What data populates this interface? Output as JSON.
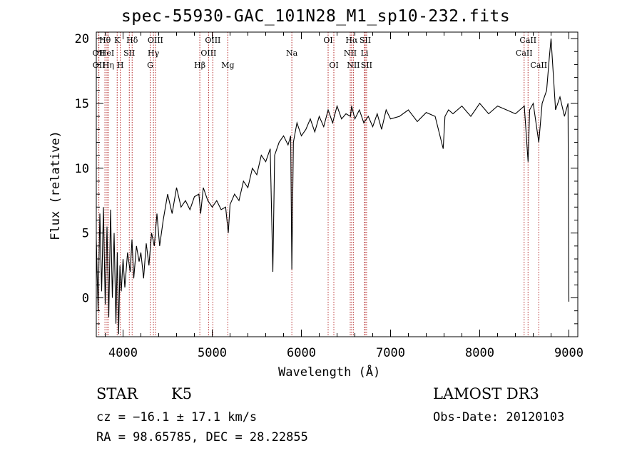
{
  "chart_data": {
    "type": "line",
    "title": "spec-55930-GAC_101N28_M1_sp10-232.fits",
    "xlabel": "Wavelength (Å)",
    "ylabel": "Flux (relative)",
    "xlim": [
      3700,
      9100
    ],
    "ylim": [
      -3,
      20.5
    ],
    "xticks": [
      4000,
      5000,
      6000,
      7000,
      8000,
      9000
    ],
    "yticks": [
      0,
      5,
      10,
      15,
      20
    ],
    "series": [
      {
        "name": "flux",
        "x": [
          3700,
          3720,
          3740,
          3760,
          3780,
          3800,
          3820,
          3840,
          3860,
          3880,
          3900,
          3920,
          3935,
          3950,
          3965,
          3980,
          4000,
          4020,
          4050,
          4080,
          4100,
          4120,
          4150,
          4180,
          4200,
          4230,
          4260,
          4290,
          4320,
          4350,
          4380,
          4410,
          4450,
          4500,
          4550,
          4600,
          4650,
          4700,
          4750,
          4800,
          4850,
          4870,
          4900,
          4950,
          5000,
          5050,
          5100,
          5150,
          5180,
          5200,
          5250,
          5300,
          5350,
          5400,
          5450,
          5500,
          5550,
          5600,
          5650,
          5680,
          5700,
          5750,
          5800,
          5850,
          5880,
          5893,
          5910,
          5950,
          6000,
          6050,
          6100,
          6150,
          6200,
          6250,
          6300,
          6350,
          6400,
          6450,
          6500,
          6550,
          6563,
          6600,
          6650,
          6700,
          6750,
          6800,
          6850,
          6900,
          6950,
          7000,
          7100,
          7200,
          7300,
          7400,
          7500,
          7590,
          7610,
          7650,
          7700,
          7800,
          7900,
          8000,
          8100,
          8200,
          8300,
          8400,
          8500,
          8542,
          8560,
          8600,
          8662,
          8700,
          8750,
          8780,
          8800,
          8850,
          8900,
          8950,
          8990,
          9000
        ],
        "y": [
          4.5,
          -1.0,
          6.5,
          0.5,
          7.0,
          -0.5,
          5.5,
          -1.5,
          6.8,
          0.0,
          5.0,
          -2.0,
          3.5,
          -2.8,
          2.5,
          0.5,
          3.0,
          0.8,
          3.5,
          2.0,
          4.5,
          1.5,
          4.0,
          2.8,
          3.5,
          1.5,
          4.2,
          2.5,
          5.0,
          4.0,
          6.5,
          4.0,
          6.0,
          8.0,
          6.5,
          8.5,
          7.0,
          7.5,
          6.8,
          7.8,
          8.0,
          6.5,
          8.5,
          7.5,
          7.0,
          7.5,
          6.8,
          7.0,
          5.0,
          7.2,
          8.0,
          7.5,
          9.0,
          8.5,
          10.0,
          9.5,
          11.0,
          10.5,
          11.5,
          2.0,
          11.0,
          12.0,
          12.5,
          11.8,
          12.5,
          2.2,
          12.0,
          13.5,
          12.5,
          13.0,
          13.8,
          12.8,
          14.0,
          13.2,
          14.5,
          13.5,
          14.8,
          13.8,
          14.2,
          14.0,
          14.8,
          13.8,
          14.5,
          13.5,
          14.0,
          13.2,
          14.2,
          13.0,
          14.5,
          13.8,
          14.0,
          14.5,
          13.6,
          14.3,
          14.0,
          11.5,
          14.0,
          14.5,
          14.2,
          14.8,
          14.0,
          15.0,
          14.2,
          14.8,
          14.5,
          14.2,
          14.8,
          10.5,
          14.5,
          15.0,
          12.0,
          15.0,
          16.0,
          18.5,
          20.0,
          14.5,
          15.5,
          14.0,
          15.0,
          -0.3
        ]
      }
    ],
    "lines": [
      {
        "label": "Hθ",
        "x": 3797,
        "row": 0
      },
      {
        "label": "OII",
        "x": 3727,
        "row": 1
      },
      {
        "label": "OII",
        "x": 3729,
        "row": 2
      },
      {
        "label": "HeI",
        "x": 3820,
        "row": 1
      },
      {
        "label": "Hη",
        "x": 3835,
        "row": 2
      },
      {
        "label": "K",
        "x": 3934,
        "row": 0
      },
      {
        "label": "H",
        "x": 3969,
        "row": 2
      },
      {
        "label": "SII",
        "x": 4070,
        "row": 1
      },
      {
        "label": "Hδ",
        "x": 4102,
        "row": 0
      },
      {
        "label": "G",
        "x": 4304,
        "row": 2
      },
      {
        "label": "Hγ",
        "x": 4341,
        "row": 1
      },
      {
        "label": "OIII",
        "x": 4363,
        "row": 0
      },
      {
        "label": "Hβ",
        "x": 4861,
        "row": 2
      },
      {
        "label": "OIII",
        "x": 4959,
        "row": 1
      },
      {
        "label": "OIII",
        "x": 5007,
        "row": 0
      },
      {
        "label": "Mg",
        "x": 5175,
        "row": 2
      },
      {
        "label": "Na",
        "x": 5893,
        "row": 1
      },
      {
        "label": "OI",
        "x": 6300,
        "row": 0
      },
      {
        "label": "OI",
        "x": 6364,
        "row": 2
      },
      {
        "label": "NII",
        "x": 6548,
        "row": 1
      },
      {
        "label": "Hα",
        "x": 6563,
        "row": 0
      },
      {
        "label": "NII",
        "x": 6583,
        "row": 2
      },
      {
        "label": "Li",
        "x": 6708,
        "row": 1
      },
      {
        "label": "SII",
        "x": 6716,
        "row": 0
      },
      {
        "label": "SII",
        "x": 6731,
        "row": 2
      },
      {
        "label": "CaII",
        "x": 8498,
        "row": 1
      },
      {
        "label": "CaII",
        "x": 8542,
        "row": 0
      },
      {
        "label": "CaII",
        "x": 8662,
        "row": 2
      }
    ]
  },
  "info": {
    "object_class": "STAR",
    "subclass": "K5",
    "survey": "LAMOST DR3",
    "redshift": "cz = −16.1 ± 17.1 km/s",
    "obs_date": "Obs-Date: 20120103",
    "coords": "RA =  98.65785, DEC =  28.22855"
  },
  "colors": {
    "axis": "#000000",
    "spectrum": "#000000",
    "marker_line": "#b22222"
  }
}
